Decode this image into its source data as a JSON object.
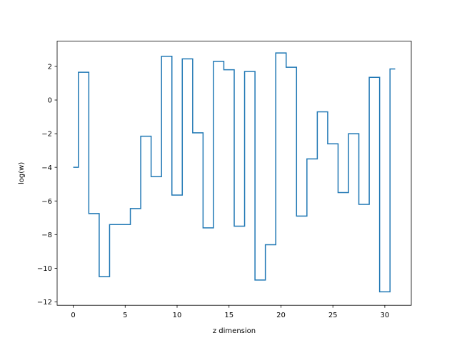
{
  "chart_data": {
    "type": "line",
    "drawstyle": "steps-mid",
    "title": "",
    "xlabel": "z dimension",
    "ylabel": "log(w)",
    "xlim": [
      -1.55,
      32.55
    ],
    "ylim": [
      -12.2,
      3.5
    ],
    "xticks": [
      0,
      5,
      10,
      15,
      20,
      25,
      30
    ],
    "yticks": [
      -12,
      -10,
      -8,
      -6,
      -4,
      -2,
      0,
      2
    ],
    "grid": false,
    "legend": "none",
    "colors": {
      "line": "#1f77b4",
      "axes": "#000000",
      "background": "#ffffff"
    },
    "series": [
      {
        "x": [
          0,
          1,
          2,
          3,
          4,
          5,
          6,
          7,
          8,
          9,
          10,
          11,
          12,
          13,
          14,
          15,
          16,
          17,
          18,
          19,
          20,
          21,
          22,
          23,
          24,
          25,
          26,
          27,
          28,
          29,
          30,
          31
        ],
        "values": [
          -4.0,
          1.65,
          -6.75,
          -10.5,
          -7.4,
          -7.4,
          -6.45,
          -2.15,
          -4.55,
          2.6,
          -5.65,
          2.45,
          -1.95,
          -7.6,
          2.3,
          1.8,
          -7.5,
          1.7,
          -10.7,
          -8.6,
          2.8,
          1.95,
          -6.9,
          -3.5,
          -0.7,
          -2.6,
          -5.5,
          -2.0,
          -6.2,
          1.35,
          -11.4,
          1.85
        ]
      }
    ]
  }
}
